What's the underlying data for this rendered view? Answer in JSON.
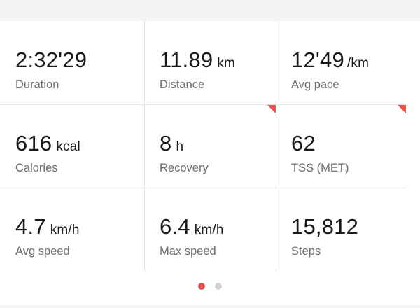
{
  "stats": [
    {
      "value": "2:32'29",
      "unit": "",
      "label": "Duration"
    },
    {
      "value": "11.89",
      "unit": "km",
      "label": "Distance"
    },
    {
      "value": "12'49",
      "unit": "/km",
      "label": "Avg pace"
    },
    {
      "value": "616",
      "unit": "kcal",
      "label": "Calories"
    },
    {
      "value": "8",
      "unit": "h",
      "label": "Recovery"
    },
    {
      "value": "62",
      "unit": "",
      "label": "TSS (MET)"
    },
    {
      "value": "4.7",
      "unit": "km/h",
      "label": "Avg speed"
    },
    {
      "value": "6.4",
      "unit": "km/h",
      "label": "Max speed"
    },
    {
      "value": "15,812",
      "unit": "",
      "label": "Steps"
    }
  ],
  "pager": {
    "count": 2,
    "active": 0
  },
  "colors": {
    "accent": "#e8534a",
    "dot_inactive": "#d3d3d3",
    "label": "#6e6e6e",
    "divider": "#e6e6e6"
  }
}
